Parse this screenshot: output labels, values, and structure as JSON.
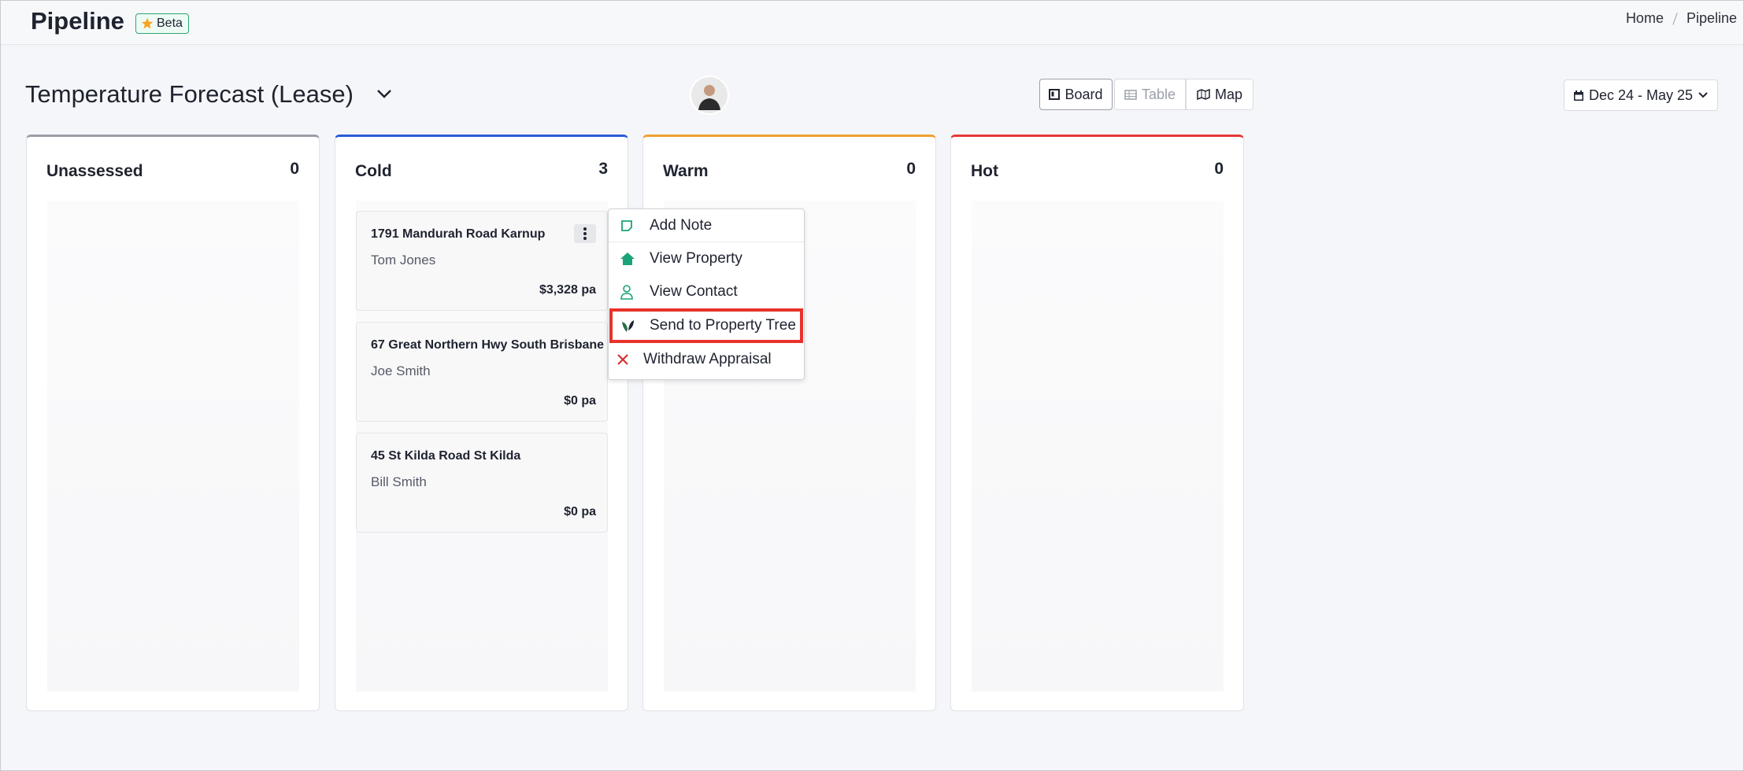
{
  "header": {
    "title": "Pipeline",
    "badge": "Beta",
    "breadcrumb": [
      "Home",
      "Pipeline"
    ]
  },
  "toolbar": {
    "board_title": "Temperature Forecast (Lease)",
    "views": [
      "Board",
      "Table",
      "Map"
    ],
    "date_range": "Dec 24 - May 25"
  },
  "columns": [
    {
      "name": "Unassessed",
      "count": 0,
      "cards": []
    },
    {
      "name": "Cold",
      "count": 3,
      "cards": [
        {
          "address": "1791 Mandurah Road Karnup",
          "contact": "Tom Jones",
          "amount": "$3,328 pa"
        },
        {
          "address": "67 Great Northern Hwy South Brisbane",
          "contact": "Joe Smith",
          "amount": "$0 pa"
        },
        {
          "address": "45 St Kilda Road St Kilda",
          "contact": "Bill Smith",
          "amount": "$0 pa"
        }
      ]
    },
    {
      "name": "Warm",
      "count": 0,
      "cards": []
    },
    {
      "name": "Hot",
      "count": 0,
      "cards": []
    }
  ],
  "menu": [
    "Add Note",
    "View Property",
    "View Contact",
    "Send to Property Tree",
    "Withdraw Appraisal"
  ]
}
